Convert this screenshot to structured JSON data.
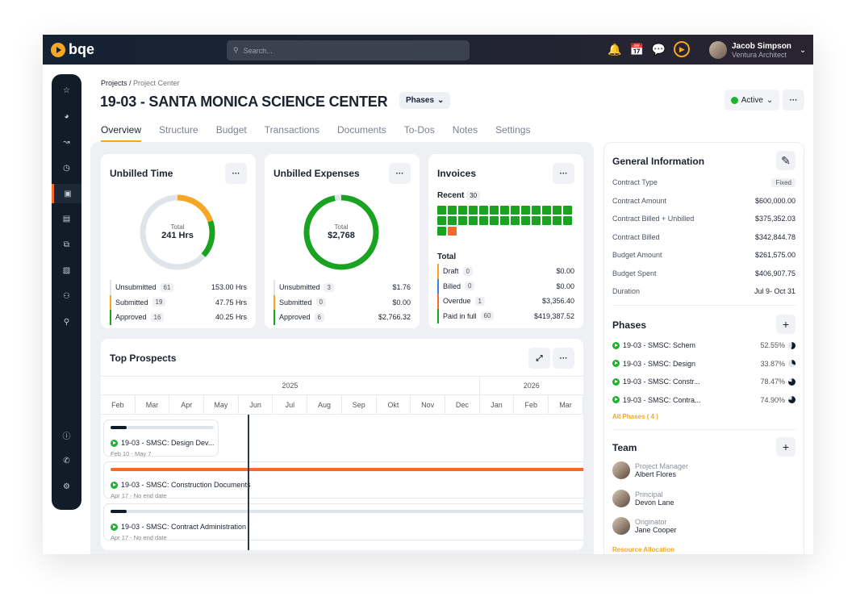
{
  "header": {
    "logo": "bqe",
    "search_placeholder": "Search...",
    "user": {
      "name": "Jacob Simpson",
      "company": "Ventura Architect"
    }
  },
  "sidebar": {
    "icons": [
      "star-icon",
      "dashboard-icon",
      "chart-icon",
      "clock-icon",
      "briefcase-icon",
      "document-icon",
      "copy-icon",
      "invoice-icon",
      "users-icon",
      "network-icon",
      "help-icon",
      "phone-icon",
      "settings-icon"
    ],
    "active": 4
  },
  "breadcrumb": {
    "root": "Projects",
    "current": "Project Center"
  },
  "project": {
    "title": "19-03 - SANTA MONICA SCIENCE CENTER",
    "phases_label": "Phases",
    "status": "Active"
  },
  "tabs": [
    "Overview",
    "Structure",
    "Budget",
    "Transactions",
    "Documents",
    "To-Dos",
    "Notes",
    "Settings"
  ],
  "colors": {
    "accent": "#f5a623",
    "green": "#1aa321",
    "orange_red": "#f26b2a",
    "navy": "#111c28"
  },
  "unbilled_time": {
    "title": "Unbilled Time",
    "total_label": "Total",
    "total": "241 Hrs",
    "rows": [
      {
        "label": "Unsubmitted",
        "count": "61",
        "value": "153.00 Hrs",
        "color": "#dfe3ea"
      },
      {
        "label": "Submitted",
        "count": "19",
        "value": "47.75 Hrs",
        "color": "#f5a623"
      },
      {
        "label": "Approved",
        "count": "16",
        "value": "40.25 Hrs",
        "color": "#1aa321"
      }
    ]
  },
  "unbilled_expenses": {
    "title": "Unbilled Expenses",
    "total_label": "Total",
    "total": "$2,768",
    "rows": [
      {
        "label": "Unsubmitted",
        "count": "3",
        "value": "$1.76",
        "color": "#dfe3ea"
      },
      {
        "label": "Submitted",
        "count": "0",
        "value": "$0.00",
        "color": "#f5a623"
      },
      {
        "label": "Approved",
        "count": "6",
        "value": "$2,766.32",
        "color": "#1aa321"
      }
    ]
  },
  "invoices": {
    "title": "Invoices",
    "recent_label": "Recent",
    "recent_count": "30",
    "recent_paid": 27,
    "recent_overdue": 1,
    "total_label": "Total",
    "rows": [
      {
        "label": "Draft",
        "count": "0",
        "value": "$0.00",
        "color": "#f5a623"
      },
      {
        "label": "Billed",
        "count": "0",
        "value": "$0.00",
        "color": "#3b82d6"
      },
      {
        "label": "Overdue",
        "count": "1",
        "value": "$3,356.40",
        "color": "#f26b2a"
      },
      {
        "label": "Paid in full",
        "count": "60",
        "value": "$419,387.52",
        "color": "#1aa321"
      }
    ]
  },
  "top_prospects": {
    "title": "Top Prospects",
    "years": [
      "2025",
      "2026"
    ],
    "months": [
      "Feb",
      "Mar",
      "Apr",
      "May",
      "Jun",
      "Jul",
      "Aug",
      "Sep",
      "Okt",
      "Nov",
      "Dec",
      "Jan",
      "Feb",
      "Mar"
    ],
    "items": [
      {
        "name": "19-03 - SMSC: Design Dev...",
        "dates": "Feb 10 - May 7"
      },
      {
        "name": "19-03 - SMSC: Construction Documents",
        "dates": "Apr 17 - No end date"
      },
      {
        "name": "19-03 - SMSC: Contract Administration",
        "dates": "Apr 17 - No end date"
      }
    ]
  },
  "general_info": {
    "title": "General Information",
    "rows": [
      {
        "label": "Contract Type",
        "value": "Fixed"
      },
      {
        "label": "Contract Amount",
        "value": "$600,000.00"
      },
      {
        "label": "Contract Billed + Unbilled",
        "value": "$375,352.03"
      },
      {
        "label": "Contract Billed",
        "value": "$342,844.78"
      },
      {
        "label": "Budget Amount",
        "value": "$261,575.00"
      },
      {
        "label": "Budget Spent",
        "value": "$406,907.75"
      },
      {
        "label": "Duration",
        "value": "Jul 9- Oct 31"
      }
    ]
  },
  "phases": {
    "title": "Phases",
    "items": [
      {
        "name": "19-03 - SMSC: Schem",
        "pct": "52.55%",
        "v": 52.55
      },
      {
        "name": "19-03 - SMSC: Design",
        "pct": "33.87%",
        "v": 33.87
      },
      {
        "name": "19-03 - SMSC: Constr...",
        "pct": "78.47%",
        "v": 78.47
      },
      {
        "name": "19-03 - SMSC: Contra...",
        "pct": "74.90%",
        "v": 74.9
      }
    ],
    "all_link": "All Phases ( 4 )"
  },
  "team": {
    "title": "Team",
    "members": [
      {
        "role": "Project Manager",
        "name": "Albert Flores"
      },
      {
        "role": "Principal",
        "name": "Devon Lane"
      },
      {
        "role": "Originator",
        "name": "Jane Cooper"
      }
    ],
    "link": "Resource Allocation"
  }
}
